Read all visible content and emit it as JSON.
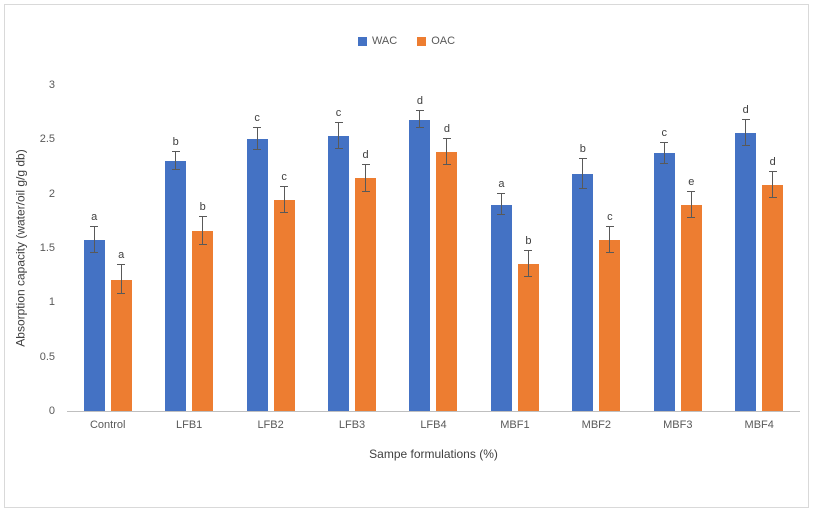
{
  "chart_data": {
    "type": "bar",
    "title": "",
    "categories": [
      "Control",
      "LFB1",
      "LFB2",
      "LFB3",
      "LFB4",
      "MBF1",
      "MBF2",
      "MBF3",
      "MBF4"
    ],
    "series": [
      {
        "name": "WAC",
        "color": "#4472C4",
        "values": [
          1.57,
          2.3,
          2.5,
          2.53,
          2.68,
          1.9,
          2.18,
          2.37,
          2.56
        ],
        "errors": [
          0.12,
          0.08,
          0.1,
          0.12,
          0.08,
          0.1,
          0.14,
          0.1,
          0.12
        ],
        "letters": [
          "a",
          "b",
          "c",
          "c",
          "d",
          "a",
          "b",
          "c",
          "d"
        ]
      },
      {
        "name": "OAC",
        "color": "#ED7D31",
        "values": [
          1.21,
          1.66,
          1.94,
          2.14,
          2.38,
          1.35,
          1.57,
          1.9,
          2.08
        ],
        "errors": [
          0.13,
          0.13,
          0.12,
          0.12,
          0.12,
          0.12,
          0.12,
          0.12,
          0.12
        ],
        "letters": [
          "a",
          "b",
          "c",
          "d",
          "d",
          "b",
          "c",
          "e",
          "d"
        ]
      }
    ],
    "xlabel": "Sampe formulations (%)",
    "ylabel": "Absorption capacity (water/oil g/g db)",
    "ylim": [
      0,
      3
    ],
    "yticks": [
      0,
      0.5,
      1,
      1.5,
      2,
      2.5,
      3
    ],
    "grid": false,
    "legend_position": "top",
    "errorbar_color": "#595959"
  }
}
